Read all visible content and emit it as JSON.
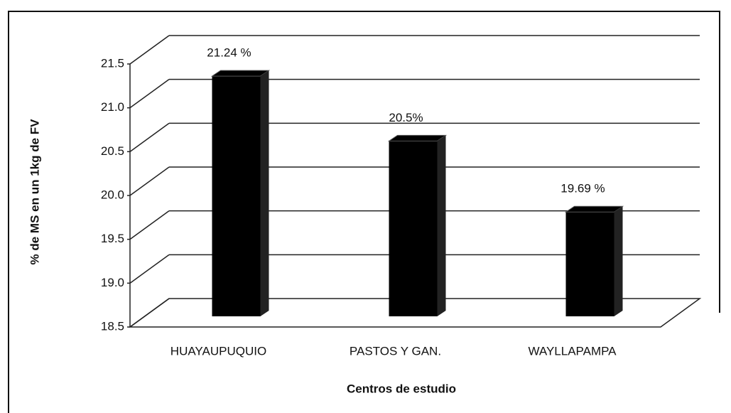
{
  "chart_data": {
    "type": "bar3d",
    "categories": [
      "HUAYAUPUQUIO",
      "PASTOS Y GAN.",
      "WAYLLAPAMPA"
    ],
    "values": [
      21.24,
      20.5,
      19.69
    ],
    "value_labels": [
      "21.24 %",
      "20.5%",
      "19.69 %"
    ],
    "color": "#000000",
    "y_axis_label": "% de MS en un 1kg de FV",
    "x_axis_label": "Centros de estudio",
    "ylim": [
      18.5,
      21.5
    ],
    "yticks": [
      18.5,
      {
        "value": 19,
        "label": "19.0"
      },
      19.5,
      {
        "value": 20,
        "label": "20.0"
      },
      20.5,
      {
        "value": 21,
        "label": "21.0"
      },
      21.5
    ],
    "grid": true
  }
}
